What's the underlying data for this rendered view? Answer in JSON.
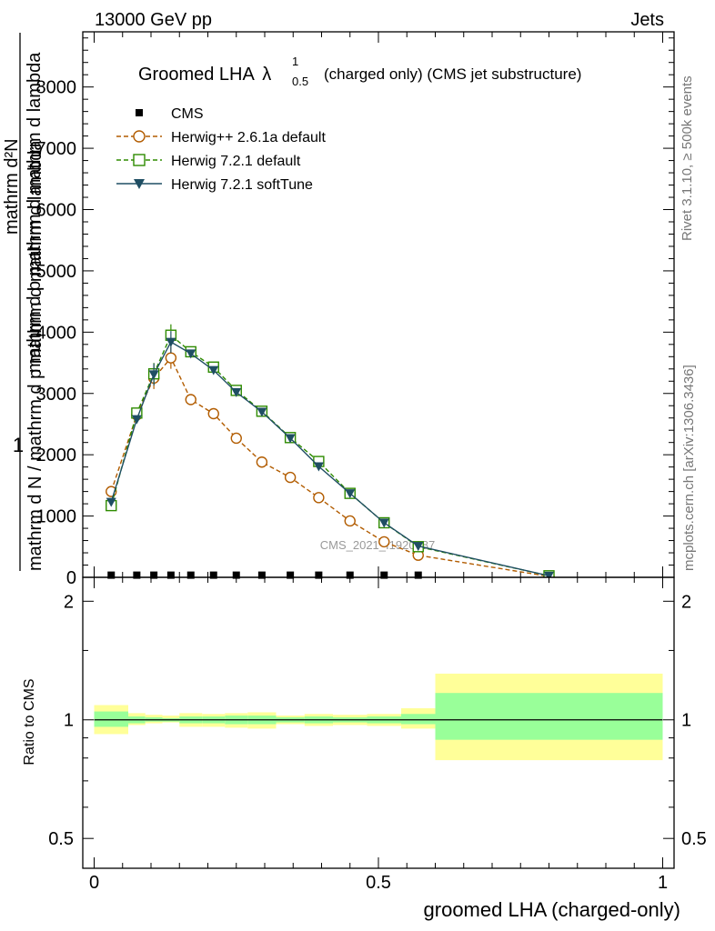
{
  "header": {
    "left": "13000 GeV pp",
    "right": "Jets"
  },
  "side": {
    "rivet": "Rivet 3.1.10, ≥ 500k events",
    "mcplots": "mcplots.cern.ch [arXiv:1306.3436]"
  },
  "watermark": "CMS_2021_I1920187",
  "chart_data": [
    {
      "type": "line",
      "title": {
        "main": "Groomed LHA",
        "lambda": "λ",
        "sup": "1",
        "sub": "0.5",
        "suffix": "(charged only) (CMS jet substructure)"
      },
      "ylabel": {
        "one": "1",
        "denominator": "mathrm d N / mathrm d p mathrm d mathrm d lambda",
        "numerator_top": "mathrm d²N",
        "numerator_bottom": "mathrm d p mathrm d mathrm d lambda"
      },
      "xlim": [
        -0.02,
        1.02
      ],
      "ylim": [
        0,
        8900
      ],
      "yticks": [
        0,
        1000,
        2000,
        3000,
        4000,
        5000,
        6000,
        7000,
        8000
      ],
      "yticklabels": [
        "0",
        "1000",
        "2000",
        "3000",
        "4000",
        "5000",
        "6000",
        "7000",
        "8000"
      ],
      "legend_position": "top-left",
      "series": [
        {
          "name": "CMS",
          "color": "#000000",
          "marker": "square-filled",
          "x": [
            0.03,
            0.075,
            0.105,
            0.135,
            0.17,
            0.21,
            0.25,
            0.295,
            0.345,
            0.395,
            0.45,
            0.51,
            0.57
          ],
          "y": [
            6,
            6,
            6,
            6,
            6,
            6,
            6,
            6,
            6,
            6,
            6,
            6,
            6
          ]
        },
        {
          "name": "Herwig++ 2.6.1a default",
          "color": "#b25c00",
          "marker": "circle-open",
          "dash": "dashed",
          "x": [
            0.03,
            0.075,
            0.105,
            0.135,
            0.17,
            0.21,
            0.25,
            0.295,
            0.345,
            0.395,
            0.45,
            0.51,
            0.57,
            0.8
          ],
          "y": [
            1400,
            2650,
            3250,
            3580,
            2900,
            2670,
            2270,
            1880,
            1630,
            1300,
            920,
            580,
            360,
            15
          ]
        },
        {
          "name": "Herwig 7.2.1 default",
          "color": "#2e8b00",
          "marker": "square-open",
          "dash": "dashed",
          "x": [
            0.03,
            0.075,
            0.105,
            0.135,
            0.17,
            0.21,
            0.25,
            0.295,
            0.345,
            0.395,
            0.45,
            0.51,
            0.57,
            0.8
          ],
          "y": [
            1170,
            2680,
            3320,
            3950,
            3680,
            3430,
            3050,
            2710,
            2280,
            1890,
            1370,
            890,
            500,
            25
          ]
        },
        {
          "name": "Herwig 7.2.1 softTune",
          "color": "#1f4e63",
          "marker": "triangle-down-filled",
          "dash": "solid",
          "x": [
            0.03,
            0.075,
            0.105,
            0.135,
            0.17,
            0.21,
            0.25,
            0.295,
            0.345,
            0.395,
            0.45,
            0.51,
            0.57,
            0.8
          ],
          "y": [
            1230,
            2580,
            3310,
            3840,
            3650,
            3380,
            3020,
            2700,
            2270,
            1810,
            1370,
            890,
            510,
            25
          ]
        }
      ]
    },
    {
      "type": "area",
      "ylabel": "Ratio to CMS",
      "xlabel": "groomed LHA (charged-only)",
      "xlim": [
        -0.02,
        1.02
      ],
      "ylim": [
        0.42,
        2.3
      ],
      "scale": "log",
      "yticks": [
        0.5,
        1,
        2
      ],
      "yticklabels": [
        "0.5",
        "1",
        "2"
      ],
      "xticks": [
        0,
        0.5,
        1
      ],
      "xticklabels": [
        "0",
        "0.5",
        "1"
      ],
      "bands": {
        "outer_color": "#ffff99",
        "inner_color": "#99ff99",
        "bins": [
          {
            "lo": 0.0,
            "hi": 0.06,
            "outer": [
              0.92,
              1.09
            ],
            "inner": [
              0.96,
              1.05
            ]
          },
          {
            "lo": 0.06,
            "hi": 0.09,
            "outer": [
              0.97,
              1.04
            ],
            "inner": [
              0.98,
              1.02
            ]
          },
          {
            "lo": 0.09,
            "hi": 0.12,
            "outer": [
              0.98,
              1.03
            ],
            "inner": [
              0.99,
              1.015
            ]
          },
          {
            "lo": 0.12,
            "hi": 0.15,
            "outer": [
              0.985,
              1.025
            ],
            "inner": [
              0.99,
              1.01
            ]
          },
          {
            "lo": 0.15,
            "hi": 0.19,
            "outer": [
              0.96,
              1.04
            ],
            "inner": [
              0.98,
              1.02
            ]
          },
          {
            "lo": 0.19,
            "hi": 0.23,
            "outer": [
              0.96,
              1.035
            ],
            "inner": [
              0.98,
              1.02
            ]
          },
          {
            "lo": 0.23,
            "hi": 0.27,
            "outer": [
              0.955,
              1.04
            ],
            "inner": [
              0.975,
              1.025
            ]
          },
          {
            "lo": 0.27,
            "hi": 0.32,
            "outer": [
              0.95,
              1.045
            ],
            "inner": [
              0.975,
              1.025
            ]
          },
          {
            "lo": 0.32,
            "hi": 0.37,
            "outer": [
              0.975,
              1.025
            ],
            "inner": [
              0.985,
              1.015
            ]
          },
          {
            "lo": 0.37,
            "hi": 0.42,
            "outer": [
              0.965,
              1.035
            ],
            "inner": [
              0.98,
              1.02
            ]
          },
          {
            "lo": 0.42,
            "hi": 0.48,
            "outer": [
              0.97,
              1.03
            ],
            "inner": [
              0.985,
              1.015
            ]
          },
          {
            "lo": 0.48,
            "hi": 0.54,
            "outer": [
              0.965,
              1.035
            ],
            "inner": [
              0.98,
              1.02
            ]
          },
          {
            "lo": 0.54,
            "hi": 0.6,
            "outer": [
              0.95,
              1.07
            ],
            "inner": [
              0.975,
              1.035
            ]
          },
          {
            "lo": 0.6,
            "hi": 1.0,
            "outer": [
              0.79,
              1.31
            ],
            "inner": [
              0.89,
              1.17
            ]
          }
        ]
      }
    }
  ]
}
